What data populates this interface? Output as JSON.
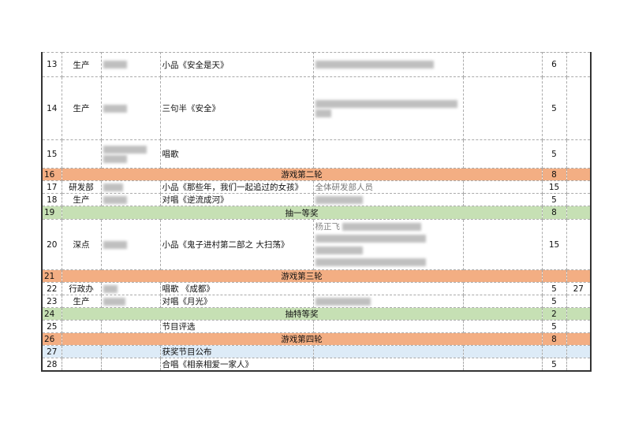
{
  "colors": {
    "game_row": "#f3ae83",
    "lottery_row": "#c6e0b4",
    "announce_row": "#ddebf7"
  },
  "rows": [
    {
      "no": "13",
      "dept": "生产",
      "program": "小品《安全是天》",
      "duration": "6",
      "extra": ""
    },
    {
      "no": "14",
      "dept": "生产",
      "program": "三句半《安全》",
      "duration": "5",
      "extra": ""
    },
    {
      "no": "15",
      "dept": "",
      "program": "唱歌",
      "duration": "5",
      "extra": ""
    },
    {
      "no": "16",
      "program": "游戏第二轮",
      "duration": "8"
    },
    {
      "no": "17",
      "dept": "研发部",
      "program": "小品《那些年，我们一起追过的女孩》",
      "performers": "全体研发部人员",
      "duration": "15",
      "extra": ""
    },
    {
      "no": "18",
      "dept": "生产",
      "program": "对唱《逆流成河》",
      "duration": "5",
      "extra": ""
    },
    {
      "no": "19",
      "program": "抽一等奖",
      "duration": "8"
    },
    {
      "no": "20",
      "dept": "深点",
      "program": "小品《鬼子进村第二部之 大扫荡》",
      "performers": "杨正飞",
      "duration": "15",
      "extra": ""
    },
    {
      "no": "21",
      "program": "游戏第三轮",
      "duration": ""
    },
    {
      "no": "22",
      "dept": "行政办",
      "program": "唱歌 《成都》",
      "duration": "5",
      "extra": "27"
    },
    {
      "no": "23",
      "dept": "生产",
      "program": "对唱《月光》",
      "duration": "5",
      "extra": ""
    },
    {
      "no": "24",
      "program": "抽特等奖",
      "duration": "2"
    },
    {
      "no": "25",
      "dept": "",
      "program": "节目评选",
      "duration": "5",
      "extra": ""
    },
    {
      "no": "26",
      "program": "游戏第四轮",
      "duration": "8"
    },
    {
      "no": "27",
      "dept": "",
      "program": "获奖节目公布",
      "duration": "",
      "extra": ""
    },
    {
      "no": "28",
      "dept": "",
      "program": "合唱《相亲相爱一家人》",
      "duration": "5",
      "extra": ""
    }
  ]
}
